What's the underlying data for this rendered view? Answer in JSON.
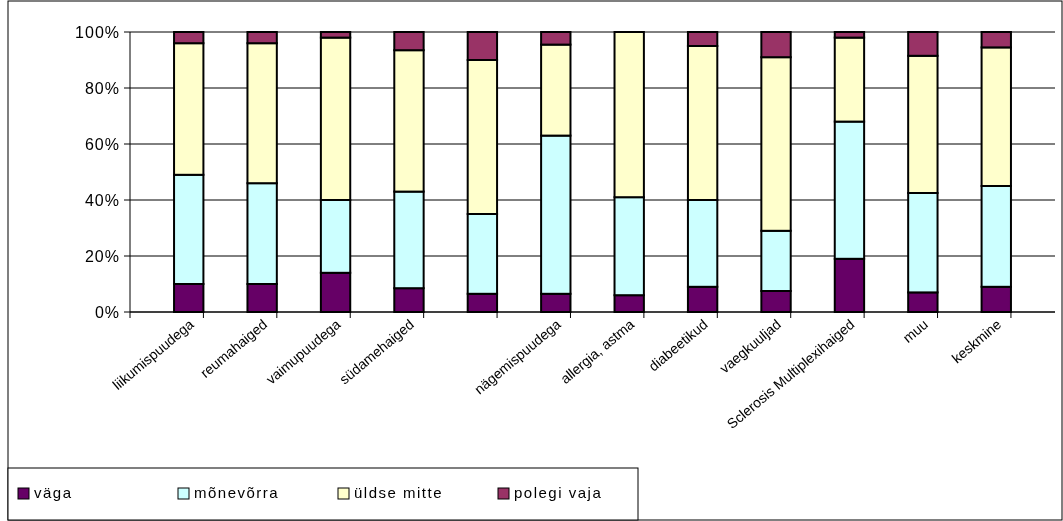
{
  "chart_data": {
    "type": "bar",
    "stacked": true,
    "categories": [
      "liikumispuudega",
      "reumahaiged",
      "vaimupuudega",
      "südamehaiged",
      null,
      "nägemispuudega",
      "allergia, astma",
      "diabeetikud",
      "vaegkuuljad",
      "Sclerosis Multiplexihaiged",
      "muu",
      "keskmine"
    ],
    "series": [
      {
        "name": "väga",
        "color": "#660066",
        "values": [
          10,
          10,
          14,
          8.5,
          6.5,
          6.5,
          6,
          9,
          7.5,
          19,
          7,
          9
        ]
      },
      {
        "name": "mõnevõrra",
        "color": "#ccffff",
        "values": [
          39,
          36,
          26,
          34.5,
          28.5,
          56.5,
          35,
          31,
          21.5,
          49,
          35.5,
          36
        ]
      },
      {
        "name": "üldse mitte",
        "color": "#ffffcc",
        "values": [
          47,
          50,
          58,
          50.5,
          55,
          32.5,
          59,
          55,
          62,
          30,
          49,
          49.5
        ]
      },
      {
        "name": "polegi vaja",
        "color": "#993366",
        "values": [
          4,
          4,
          2,
          6.5,
          10,
          4.5,
          0,
          5,
          9,
          2,
          8.5,
          5.5
        ]
      }
    ],
    "ylim": [
      0,
      100
    ],
    "yticks": [
      {
        "value": 0,
        "label": "0%"
      },
      {
        "value": 20,
        "label": "20%"
      },
      {
        "value": 40,
        "label": "40%"
      },
      {
        "value": 60,
        "label": "60%"
      },
      {
        "value": 80,
        "label": "80%"
      },
      {
        "value": 100,
        "label": "100%"
      }
    ],
    "grid": "y",
    "legend": "bottom left"
  }
}
